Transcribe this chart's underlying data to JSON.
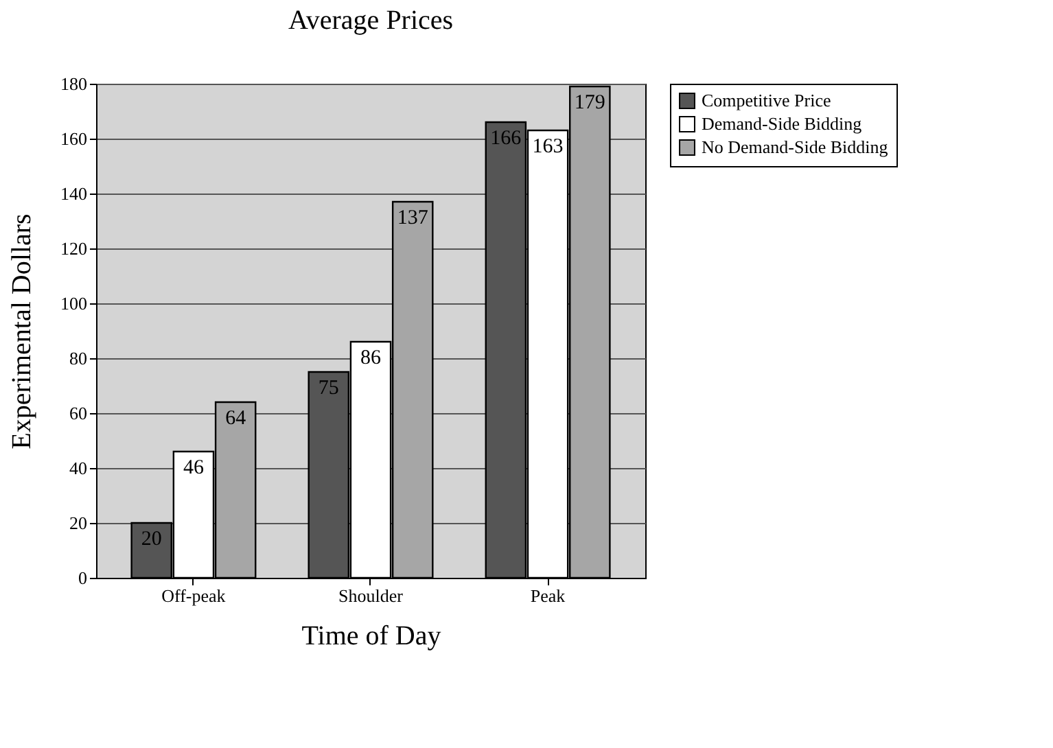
{
  "chart_data": {
    "type": "bar",
    "title": "Average Prices",
    "xlabel": "Time of Day",
    "ylabel": "Experimental Dollars",
    "categories": [
      "Off-peak",
      "Shoulder",
      "Peak"
    ],
    "series": [
      {
        "name": "Competitive Price",
        "color": "#555555",
        "values": [
          20,
          75,
          166
        ]
      },
      {
        "name": "Demand-Side Bidding",
        "color": "#ffffff",
        "values": [
          46,
          86,
          163
        ]
      },
      {
        "name": "No Demand-Side Bidding",
        "color": "#a6a6a6",
        "values": [
          64,
          137,
          179
        ]
      }
    ],
    "ylim": [
      0,
      180
    ],
    "yticks": [
      0,
      20,
      40,
      60,
      80,
      100,
      120,
      140,
      160,
      180
    ],
    "grid": "y",
    "legend": "right",
    "data_labels": true
  }
}
